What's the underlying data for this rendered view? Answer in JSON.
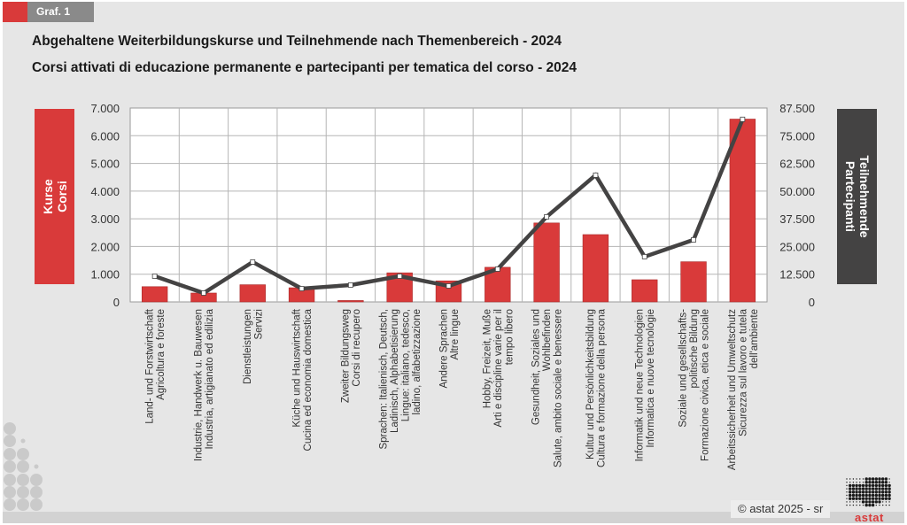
{
  "header": {
    "badge": "Graf. 1",
    "title_de": "Abgehaltene Weiterbildungskurse und Teilnehmende nach Themenbereich - 2024",
    "title_it": "Corsi attivati di educazione permanente e partecipanti per tematica del corso - 2024"
  },
  "axis_labels": {
    "left_de": "Kurse",
    "left_it": "Corsi",
    "right_de": "Teilnehmende",
    "right_it": "Partecipanti"
  },
  "footer": {
    "credit": "© astat 2025 - sr",
    "logo": "astat"
  },
  "colors": {
    "bar": "#d93a3a",
    "line": "#444343",
    "panel_left": "#d93a3a",
    "panel_right": "#444343"
  },
  "chart_data": {
    "type": "bar+line",
    "title": "Abgehaltene Weiterbildungskurse und Teilnehmende nach Themenbereich - 2024 / Corsi attivati di educazione permanente e partecipanti per tematica del corso - 2024",
    "categories": [
      [
        "Land- und Forstwirtschaft",
        "Agricoltura e foreste"
      ],
      [
        "Industrie, Handwerk u. Bauwesen",
        "Industria, artigianato ed edilizia"
      ],
      [
        "Dienstleistungen",
        "Servizi"
      ],
      [
        "Küche und Hauswirtschaft",
        "Cucina ed economia domestica"
      ],
      [
        "Zweiter Bildungsweg",
        "Corsi di recupero"
      ],
      [
        "Sprachen: Italienisch, Deutsch,",
        "Ladinisch, Alphabetisierung",
        "Lingue: italiano, tedesco,",
        "ladino, alfabetizzazione"
      ],
      [
        "Andere Sprachen",
        "Altre lingue"
      ],
      [
        "Hobby, Freizeit, Muße",
        "Arti e discipline varie per il",
        "tempo libero"
      ],
      [
        "Gesundheit, Soziales und",
        "Wohlbefinden",
        "Salute, ambito sociale e benessere"
      ],
      [
        "Kultur und Persönlichkeitsbildung",
        "Cultura e formazione della persona"
      ],
      [
        "Informatik und neue Technologien",
        "Informatica e nuove tecnologie"
      ],
      [
        "Soziale und gesellschafts-",
        "politische Bildung",
        "Formazione civica, etica e sociale"
      ],
      [
        "Arbeitssicherheit und Umweltschutz",
        "Sicurezza sul lavoro e tutela",
        "dell'ambiente"
      ]
    ],
    "series": [
      {
        "name": "Kurse / Corsi",
        "type": "bar",
        "axis": "left",
        "values": [
          550,
          320,
          620,
          510,
          50,
          1050,
          760,
          1250,
          2850,
          2430,
          800,
          1450,
          6600
        ]
      },
      {
        "name": "Teilnehmende / Partecipanti",
        "type": "line",
        "axis": "right",
        "values": [
          11600,
          4000,
          18000,
          6000,
          7600,
          11600,
          7200,
          14800,
          38400,
          57200,
          20400,
          28000,
          82400
        ]
      }
    ],
    "y_left": {
      "label": "Kurse / Corsi",
      "range": [
        0,
        7000
      ],
      "ticks": [
        "0",
        "1.000",
        "2.000",
        "3.000",
        "4.000",
        "5.000",
        "6.000",
        "7.000"
      ]
    },
    "y_right": {
      "label": "Teilnehmende / Partecipanti",
      "range": [
        0,
        87500
      ],
      "ticks": [
        "0",
        "12.500",
        "25.000",
        "37.500",
        "50.000",
        "62.500",
        "75.000",
        "87.500"
      ]
    },
    "grid": true,
    "legend": "none"
  }
}
